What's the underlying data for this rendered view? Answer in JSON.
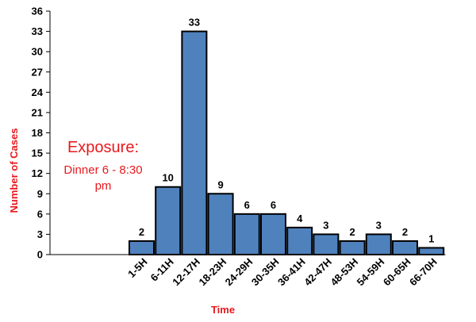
{
  "chart_data": {
    "type": "bar",
    "categories": [
      "1-5H",
      "6-11H",
      "12-17H",
      "18-23H",
      "24-29H",
      "30-35H",
      "36-41H",
      "42-47H",
      "48-53H",
      "54-59H",
      "60-65H",
      "66-70H"
    ],
    "values": [
      2,
      10,
      33,
      9,
      6,
      6,
      4,
      3,
      2,
      3,
      2,
      1
    ],
    "title": "",
    "xlabel": "Time",
    "ylabel": "Number of Cases",
    "ylim": [
      0,
      36
    ],
    "yticks": [
      0,
      3,
      6,
      9,
      12,
      15,
      18,
      21,
      24,
      27,
      30,
      33,
      36
    ],
    "grid": false,
    "data_labels": true,
    "bar_color": "#4f81bd",
    "bar_edge_color": "#000000",
    "annotation": {
      "heading": "Exposure:",
      "line1": "Dinner 6 - 8:30",
      "line2": "pm",
      "color": "#e8191e"
    }
  }
}
